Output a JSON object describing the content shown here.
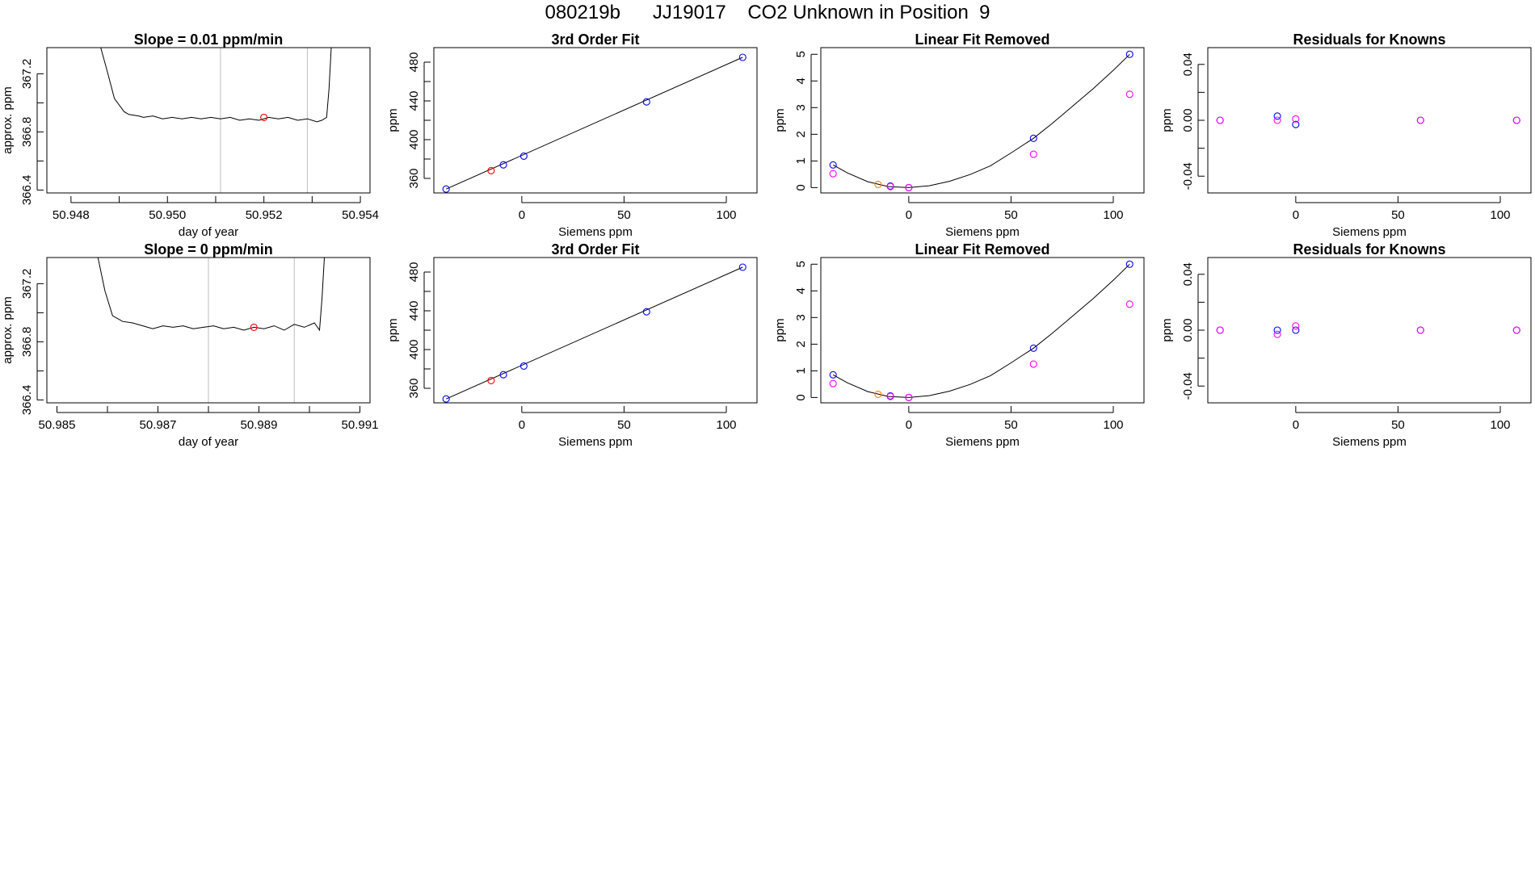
{
  "page": {
    "title": "080219b      JJ19017    CO2 Unknown in Position  9"
  },
  "colors": {
    "line": "#000000",
    "frame": "#000000",
    "vline": "#bebebe",
    "blue": "#0000ff",
    "red": "#ff0000",
    "orange": "#ff7f00",
    "magenta": "#ff00ff",
    "purple": "#a020f0"
  },
  "chart_data": [
    {
      "type": "line",
      "row": 0,
      "col": 0,
      "title": "Slope =  0.01  ppm/min",
      "xlabel": "day of year",
      "ylabel": "approx. ppm",
      "xlim": [
        50.9475,
        50.9542
      ],
      "ylim": [
        366.38,
        367.38
      ],
      "xticks": [
        50.948,
        50.949,
        50.95,
        50.951,
        50.952,
        50.953,
        50.954
      ],
      "xtick_labels": [
        "50.948",
        "",
        "50.950",
        "",
        "50.952",
        "",
        "50.954"
      ],
      "yticks": [
        366.4,
        366.6,
        366.8,
        367.0,
        367.2
      ],
      "ytick_labels": [
        "366.4",
        "",
        "366.8",
        "",
        "367.2"
      ],
      "vlines": [
        50.9511,
        50.9529
      ],
      "series": [
        {
          "style": "line",
          "x": [
            50.9486,
            50.94875,
            50.9489,
            50.9491,
            50.9492,
            50.9494,
            50.9495,
            50.9497,
            50.9499,
            50.9501,
            50.9503,
            50.9505,
            50.9507,
            50.9509,
            50.9511,
            50.9513,
            50.9515,
            50.9517,
            50.9519,
            50.9521,
            50.9523,
            50.9525,
            50.9527,
            50.9529,
            50.9531,
            50.9532,
            50.9533,
            50.95335,
            50.9534
          ],
          "y": [
            367.4,
            367.22,
            367.03,
            366.94,
            366.92,
            366.91,
            366.9,
            366.91,
            366.89,
            366.9,
            366.89,
            366.9,
            366.89,
            366.9,
            366.89,
            366.9,
            366.88,
            366.89,
            366.88,
            366.9,
            366.89,
            366.9,
            366.88,
            366.89,
            366.87,
            366.88,
            366.9,
            367.1,
            367.4
          ]
        },
        {
          "style": "points",
          "color": "red",
          "x": [
            50.952
          ],
          "y": [
            366.9
          ]
        }
      ]
    },
    {
      "type": "scatter",
      "row": 0,
      "col": 1,
      "title": "3rd Order Fit",
      "xlabel": "Siemens ppm",
      "ylabel": "ppm",
      "xlim": [
        -43,
        115
      ],
      "ylim": [
        345,
        495
      ],
      "xticks": [
        0,
        50,
        100
      ],
      "xtick_labels": [
        "0",
        "50",
        "100"
      ],
      "yticks": [
        360,
        380,
        400,
        420,
        440,
        460,
        480
      ],
      "ytick_labels": [
        "360",
        "",
        "400",
        "",
        "440",
        "",
        "480"
      ],
      "series": [
        {
          "style": "line",
          "x": [
            -37,
            108
          ],
          "y": [
            349,
            485
          ]
        },
        {
          "style": "points",
          "color": "blue",
          "x": [
            -37,
            -9,
            1,
            61,
            108
          ],
          "y": [
            349,
            374,
            383,
            439,
            485
          ]
        },
        {
          "style": "points",
          "color": "red",
          "x": [
            -15
          ],
          "y": [
            368
          ]
        }
      ]
    },
    {
      "type": "scatter",
      "row": 0,
      "col": 2,
      "title": "Linear Fit Removed",
      "xlabel": "Siemens ppm",
      "ylabel": "ppm",
      "xlim": [
        -43,
        115
      ],
      "ylim": [
        -0.2,
        5.25
      ],
      "xticks": [
        0,
        50,
        100
      ],
      "xtick_labels": [
        "0",
        "50",
        "100"
      ],
      "yticks": [
        0,
        1,
        2,
        3,
        4,
        5
      ],
      "ytick_labels": [
        "0",
        "1",
        "2",
        "3",
        "4",
        "5"
      ],
      "series": [
        {
          "style": "line",
          "x": [
            -37,
            -30,
            -20,
            -10,
            0,
            10,
            20,
            30,
            40,
            50,
            61,
            70,
            80,
            90,
            100,
            108
          ],
          "y": [
            0.85,
            0.55,
            0.22,
            0.04,
            0.0,
            0.07,
            0.24,
            0.49,
            0.82,
            1.3,
            1.85,
            2.4,
            3.05,
            3.7,
            4.4,
            5.0
          ]
        },
        {
          "style": "points",
          "color": "blue",
          "x": [
            -37,
            -9,
            0,
            61,
            108
          ],
          "y": [
            0.85,
            0.06,
            0.0,
            1.85,
            5.0
          ]
        },
        {
          "style": "points",
          "color": "orange",
          "x": [
            -15
          ],
          "y": [
            0.12
          ]
        },
        {
          "style": "points",
          "color": "magenta",
          "x": [
            -37,
            -9,
            0,
            61,
            108
          ],
          "y": [
            0.52,
            0.04,
            0.0,
            1.25,
            3.5
          ]
        }
      ]
    },
    {
      "type": "scatter",
      "row": 0,
      "col": 3,
      "title": "Residuals for Knowns",
      "xlabel": "Siemens ppm",
      "ylabel": "ppm",
      "xlim": [
        -43,
        115
      ],
      "ylim": [
        -0.052,
        0.052
      ],
      "xticks": [
        0,
        50,
        100
      ],
      "xtick_labels": [
        "0",
        "50",
        "100"
      ],
      "yticks": [
        -0.04,
        -0.02,
        0.0,
        0.02,
        0.04
      ],
      "ytick_labels": [
        "-0.04",
        "",
        "0.00",
        "",
        "0.04"
      ],
      "series": [
        {
          "style": "points",
          "color": "blue",
          "x": [
            -37,
            -9,
            0,
            61,
            108
          ],
          "y": [
            0.0,
            0.003,
            -0.003,
            0.0,
            0.0
          ]
        },
        {
          "style": "points",
          "color": "magenta",
          "x": [
            -37,
            -9,
            0,
            61,
            108
          ],
          "y": [
            0.0,
            0.0,
            0.001,
            0.0,
            0.0
          ]
        }
      ]
    },
    {
      "type": "line",
      "row": 1,
      "col": 0,
      "title": "Slope =  0  ppm/min",
      "xlabel": "day of year",
      "ylabel": "approx. ppm",
      "xlim": [
        50.9848,
        50.9912
      ],
      "ylim": [
        366.38,
        367.38
      ],
      "xticks": [
        50.985,
        50.986,
        50.987,
        50.988,
        50.989,
        50.99,
        50.991
      ],
      "xtick_labels": [
        "50.985",
        "",
        "50.987",
        "",
        "50.989",
        "",
        "50.991"
      ],
      "yticks": [
        366.4,
        366.6,
        366.8,
        367.0,
        367.2
      ],
      "ytick_labels": [
        "366.4",
        "",
        "366.8",
        "",
        "367.2"
      ],
      "vlines": [
        50.988,
        50.9897
      ],
      "series": [
        {
          "style": "line",
          "x": [
            50.9858,
            50.98595,
            50.9861,
            50.9863,
            50.9865,
            50.9867,
            50.9869,
            50.9871,
            50.9873,
            50.9875,
            50.9877,
            50.9879,
            50.9881,
            50.9883,
            50.9885,
            50.9887,
            50.9889,
            50.9891,
            50.9893,
            50.9895,
            50.9897,
            50.9899,
            50.9901,
            50.9902,
            50.99025,
            50.9903
          ],
          "y": [
            367.4,
            367.15,
            366.98,
            366.94,
            366.93,
            366.91,
            366.89,
            366.91,
            366.9,
            366.91,
            366.89,
            366.9,
            366.91,
            366.89,
            366.9,
            366.88,
            366.9,
            366.89,
            366.91,
            366.88,
            366.92,
            366.9,
            366.93,
            366.88,
            367.1,
            367.4
          ]
        },
        {
          "style": "points",
          "color": "red",
          "x": [
            50.9889
          ],
          "y": [
            366.9
          ]
        }
      ]
    },
    {
      "type": "scatter",
      "row": 1,
      "col": 1,
      "title": "3rd Order Fit",
      "xlabel": "Siemens ppm",
      "ylabel": "ppm",
      "xlim": [
        -43,
        115
      ],
      "ylim": [
        345,
        495
      ],
      "xticks": [
        0,
        50,
        100
      ],
      "xtick_labels": [
        "0",
        "50",
        "100"
      ],
      "yticks": [
        360,
        380,
        400,
        420,
        440,
        460,
        480
      ],
      "ytick_labels": [
        "360",
        "",
        "400",
        "",
        "440",
        "",
        "480"
      ],
      "series": [
        {
          "style": "line",
          "x": [
            -37,
            108
          ],
          "y": [
            349,
            485
          ]
        },
        {
          "style": "points",
          "color": "blue",
          "x": [
            -37,
            -9,
            1,
            61,
            108
          ],
          "y": [
            349,
            374,
            383,
            439,
            485
          ]
        },
        {
          "style": "points",
          "color": "red",
          "x": [
            -15
          ],
          "y": [
            368
          ]
        }
      ]
    },
    {
      "type": "scatter",
      "row": 1,
      "col": 2,
      "title": "Linear Fit Removed",
      "xlabel": "Siemens ppm",
      "ylabel": "ppm",
      "xlim": [
        -43,
        115
      ],
      "ylim": [
        -0.2,
        5.25
      ],
      "xticks": [
        0,
        50,
        100
      ],
      "xtick_labels": [
        "0",
        "50",
        "100"
      ],
      "yticks": [
        0,
        1,
        2,
        3,
        4,
        5
      ],
      "ytick_labels": [
        "0",
        "1",
        "2",
        "3",
        "4",
        "5"
      ],
      "series": [
        {
          "style": "line",
          "x": [
            -37,
            -30,
            -20,
            -10,
            0,
            10,
            20,
            30,
            40,
            50,
            61,
            70,
            80,
            90,
            100,
            108
          ],
          "y": [
            0.85,
            0.55,
            0.22,
            0.04,
            0.0,
            0.07,
            0.24,
            0.49,
            0.82,
            1.3,
            1.85,
            2.4,
            3.05,
            3.7,
            4.4,
            5.0
          ]
        },
        {
          "style": "points",
          "color": "blue",
          "x": [
            -37,
            -9,
            0,
            61,
            108
          ],
          "y": [
            0.85,
            0.06,
            0.0,
            1.85,
            5.0
          ]
        },
        {
          "style": "points",
          "color": "orange",
          "x": [
            -15
          ],
          "y": [
            0.12
          ]
        },
        {
          "style": "points",
          "color": "magenta",
          "x": [
            -37,
            -9,
            0,
            61,
            108
          ],
          "y": [
            0.52,
            0.04,
            0.0,
            1.25,
            3.5
          ]
        }
      ]
    },
    {
      "type": "scatter",
      "row": 1,
      "col": 3,
      "title": "Residuals for Knowns",
      "xlabel": "Siemens ppm",
      "ylabel": "ppm",
      "xlim": [
        -43,
        115
      ],
      "ylim": [
        -0.052,
        0.052
      ],
      "xticks": [
        0,
        50,
        100
      ],
      "xtick_labels": [
        "0",
        "50",
        "100"
      ],
      "yticks": [
        -0.04,
        -0.02,
        0.0,
        0.02,
        0.04
      ],
      "ytick_labels": [
        "-0.04",
        "",
        "0.00",
        "",
        "0.04"
      ],
      "series": [
        {
          "style": "points",
          "color": "blue",
          "x": [
            -37,
            -9,
            0,
            61,
            108
          ],
          "y": [
            0.0,
            0.0,
            0.0,
            0.0,
            0.0
          ]
        },
        {
          "style": "points",
          "color": "magenta",
          "x": [
            -37,
            -9,
            0,
            61,
            108
          ],
          "y": [
            0.0,
            -0.003,
            0.003,
            0.0,
            0.0
          ]
        }
      ]
    }
  ]
}
